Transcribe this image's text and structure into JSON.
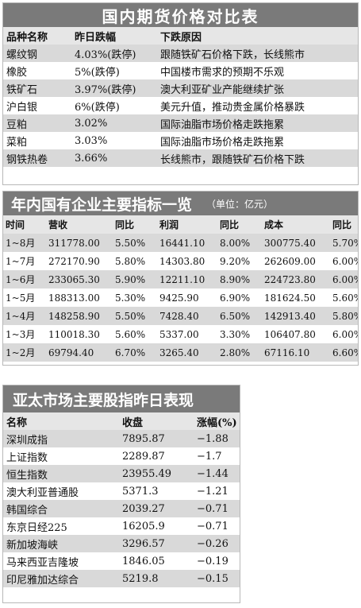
{
  "futures": {
    "title": "国内期货价格对比表",
    "headers": [
      "品种名称",
      "昨日跌幅",
      "下跌原因"
    ],
    "rows": [
      [
        "螺纹钢",
        "4.03%(跌停)",
        "跟随铁矿石价格下跌，长线熊市"
      ],
      [
        "橡胶",
        "5%(跌停)",
        "中国楼市需求的预期不乐观"
      ],
      [
        "铁矿石",
        "3.97%(跌停)",
        "澳大利亚矿业产能继续扩张"
      ],
      [
        "沪白银",
        "6%(跌停)",
        "美元升值，推动贵金属价格暴跌"
      ],
      [
        "豆粕",
        "3.02%",
        "国际油脂市场价格走跌拖累"
      ],
      [
        "菜粕",
        "3.03%",
        "国际油脂市场价格走跌拖累"
      ],
      [
        "钢铁热卷",
        "3.66%",
        "长线熊市，跟随铁矿石价格下跌"
      ]
    ]
  },
  "soe": {
    "title": "年内国有企业主要指标一览",
    "unit": "（单位：亿元）",
    "headers": [
      "时间",
      "营收",
      "同比",
      "利润",
      "同比",
      "成本",
      "同比"
    ],
    "rows": [
      [
        "1~8月",
        "311778.00",
        "5.50%",
        "16441.10",
        "8.00%",
        "300775.40",
        "5.70%"
      ],
      [
        "1~7月",
        "272170.90",
        "5.80%",
        "14303.80",
        "9.20%",
        "262609.00",
        "6.00%"
      ],
      [
        "1~6月",
        "233065.30",
        "5.90%",
        "12211.10",
        "8.90%",
        "224723.80",
        "6.00%"
      ],
      [
        "1~5月",
        "188313.00",
        "5.30%",
        "9425.90",
        "6.90%",
        "181624.50",
        "5.60%"
      ],
      [
        "1~4月",
        "148258.90",
        "5.50%",
        "7428.40",
        "6.50%",
        "142913.40",
        "5.80%"
      ],
      [
        "1~3月",
        "110018.30",
        "5.60%",
        "5337.00",
        "3.30%",
        "106407.80",
        "6.00%"
      ],
      [
        "1~2月",
        "69794.40",
        "6.70%",
        "3265.40",
        "2.80%",
        "67116.10",
        "6.60%"
      ]
    ]
  },
  "asia": {
    "title": "亚太市场主要股指昨日表现",
    "headers": [
      "名称",
      "收盘",
      "涨幅(%)"
    ],
    "rows": [
      [
        "深圳成指",
        "7895.87",
        "−1.88"
      ],
      [
        "上证指数",
        "2289.87",
        "−1.7"
      ],
      [
        "恒生指数",
        "23955.49",
        "−1.44"
      ],
      [
        "澳大利亚普通股",
        "5371.3",
        "−1.21"
      ],
      [
        "韩国综合",
        "2039.27",
        "−0.71"
      ],
      [
        "东京日经225",
        "16205.9",
        "−0.71"
      ],
      [
        "新加坡海峡",
        "3296.57",
        "−0.26"
      ],
      [
        "马来西亚吉隆坡",
        "1846.05",
        "−0.19"
      ],
      [
        "印尼雅加达综合",
        "5219.8",
        "−0.15"
      ]
    ]
  }
}
